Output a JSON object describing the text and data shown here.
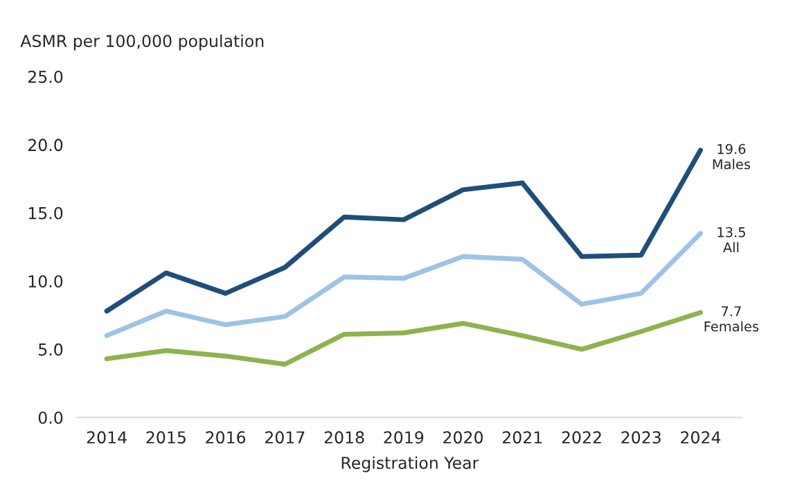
{
  "chart_data": {
    "type": "line",
    "ylabel": "ASMR per 100,000 population",
    "xlabel": "Registration Year",
    "categories": [
      "2014",
      "2015",
      "2016",
      "2017",
      "2018",
      "2019",
      "2020",
      "2021",
      "2022",
      "2023",
      "2024"
    ],
    "series": [
      {
        "name": "Males",
        "color": "#1f4e79",
        "values": [
          7.8,
          10.6,
          9.1,
          11.0,
          14.7,
          14.5,
          16.7,
          17.2,
          11.8,
          11.9,
          19.6
        ],
        "value_labels": [
          null,
          null,
          null,
          null,
          null,
          null,
          null,
          null,
          null,
          null,
          "19.6"
        ]
      },
      {
        "name": "All",
        "color": "#9dc3e6",
        "values": [
          6.0,
          7.8,
          6.8,
          7.4,
          10.3,
          10.2,
          11.8,
          11.6,
          8.3,
          9.1,
          13.5
        ],
        "value_labels": [
          null,
          null,
          null,
          null,
          null,
          null,
          null,
          null,
          null,
          null,
          "13.5"
        ]
      },
      {
        "name": "Females",
        "color": "#8fb24f",
        "values": [
          4.3,
          4.9,
          4.5,
          3.9,
          6.1,
          6.2,
          6.9,
          6.0,
          5.0,
          6.3,
          7.7
        ],
        "value_labels": [
          null,
          null,
          null,
          null,
          null,
          null,
          null,
          null,
          null,
          null,
          "7.7"
        ]
      }
    ],
    "ylim": [
      0,
      25
    ],
    "yticks": [
      {
        "value": 0,
        "label": "0.0"
      },
      {
        "value": 5,
        "label": "5.0"
      },
      {
        "value": 10,
        "label": "10.0"
      },
      {
        "value": 15,
        "label": "15.0"
      },
      {
        "value": 20,
        "label": "20.0"
      },
      {
        "value": 25,
        "label": "25.0"
      }
    ],
    "grid": false,
    "legend": false,
    "marker": "none",
    "line_style": "solid"
  }
}
